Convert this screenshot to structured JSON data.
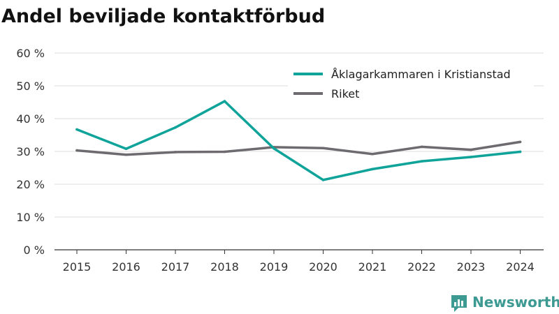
{
  "chart_data": {
    "type": "line",
    "title": "Andel beviljade kontaktförbud",
    "xlabel": "",
    "ylabel": "",
    "x": [
      "2015",
      "2016",
      "2017",
      "2018",
      "2019",
      "2020",
      "2021",
      "2022",
      "2023",
      "2024"
    ],
    "ylim": [
      0,
      60
    ],
    "y_ticks": [
      {
        "value": 0,
        "label": "0 %"
      },
      {
        "value": 10,
        "label": "10 %"
      },
      {
        "value": 20,
        "label": "20 %"
      },
      {
        "value": 30,
        "label": "30 %"
      },
      {
        "value": 40,
        "label": "40 %"
      },
      {
        "value": 50,
        "label": "50 %"
      },
      {
        "value": 60,
        "label": "60 %"
      }
    ],
    "grid": true,
    "legend_position": "top-right",
    "series": [
      {
        "name": "Åklagarkammaren i Kristianstad",
        "color": "#0fa39a",
        "values": [
          36.7,
          30.8,
          37.3,
          45.3,
          30.9,
          21.3,
          24.6,
          27.0,
          28.3,
          29.9
        ]
      },
      {
        "name": "Riket",
        "color": "#6e6b70",
        "values": [
          30.3,
          29.0,
          29.8,
          29.9,
          31.3,
          31.0,
          29.2,
          31.4,
          30.5,
          32.9
        ]
      }
    ]
  },
  "brand": {
    "name": "Newsworthy",
    "icon": "newsworthy-logo-icon",
    "color": "#3d9a92"
  }
}
